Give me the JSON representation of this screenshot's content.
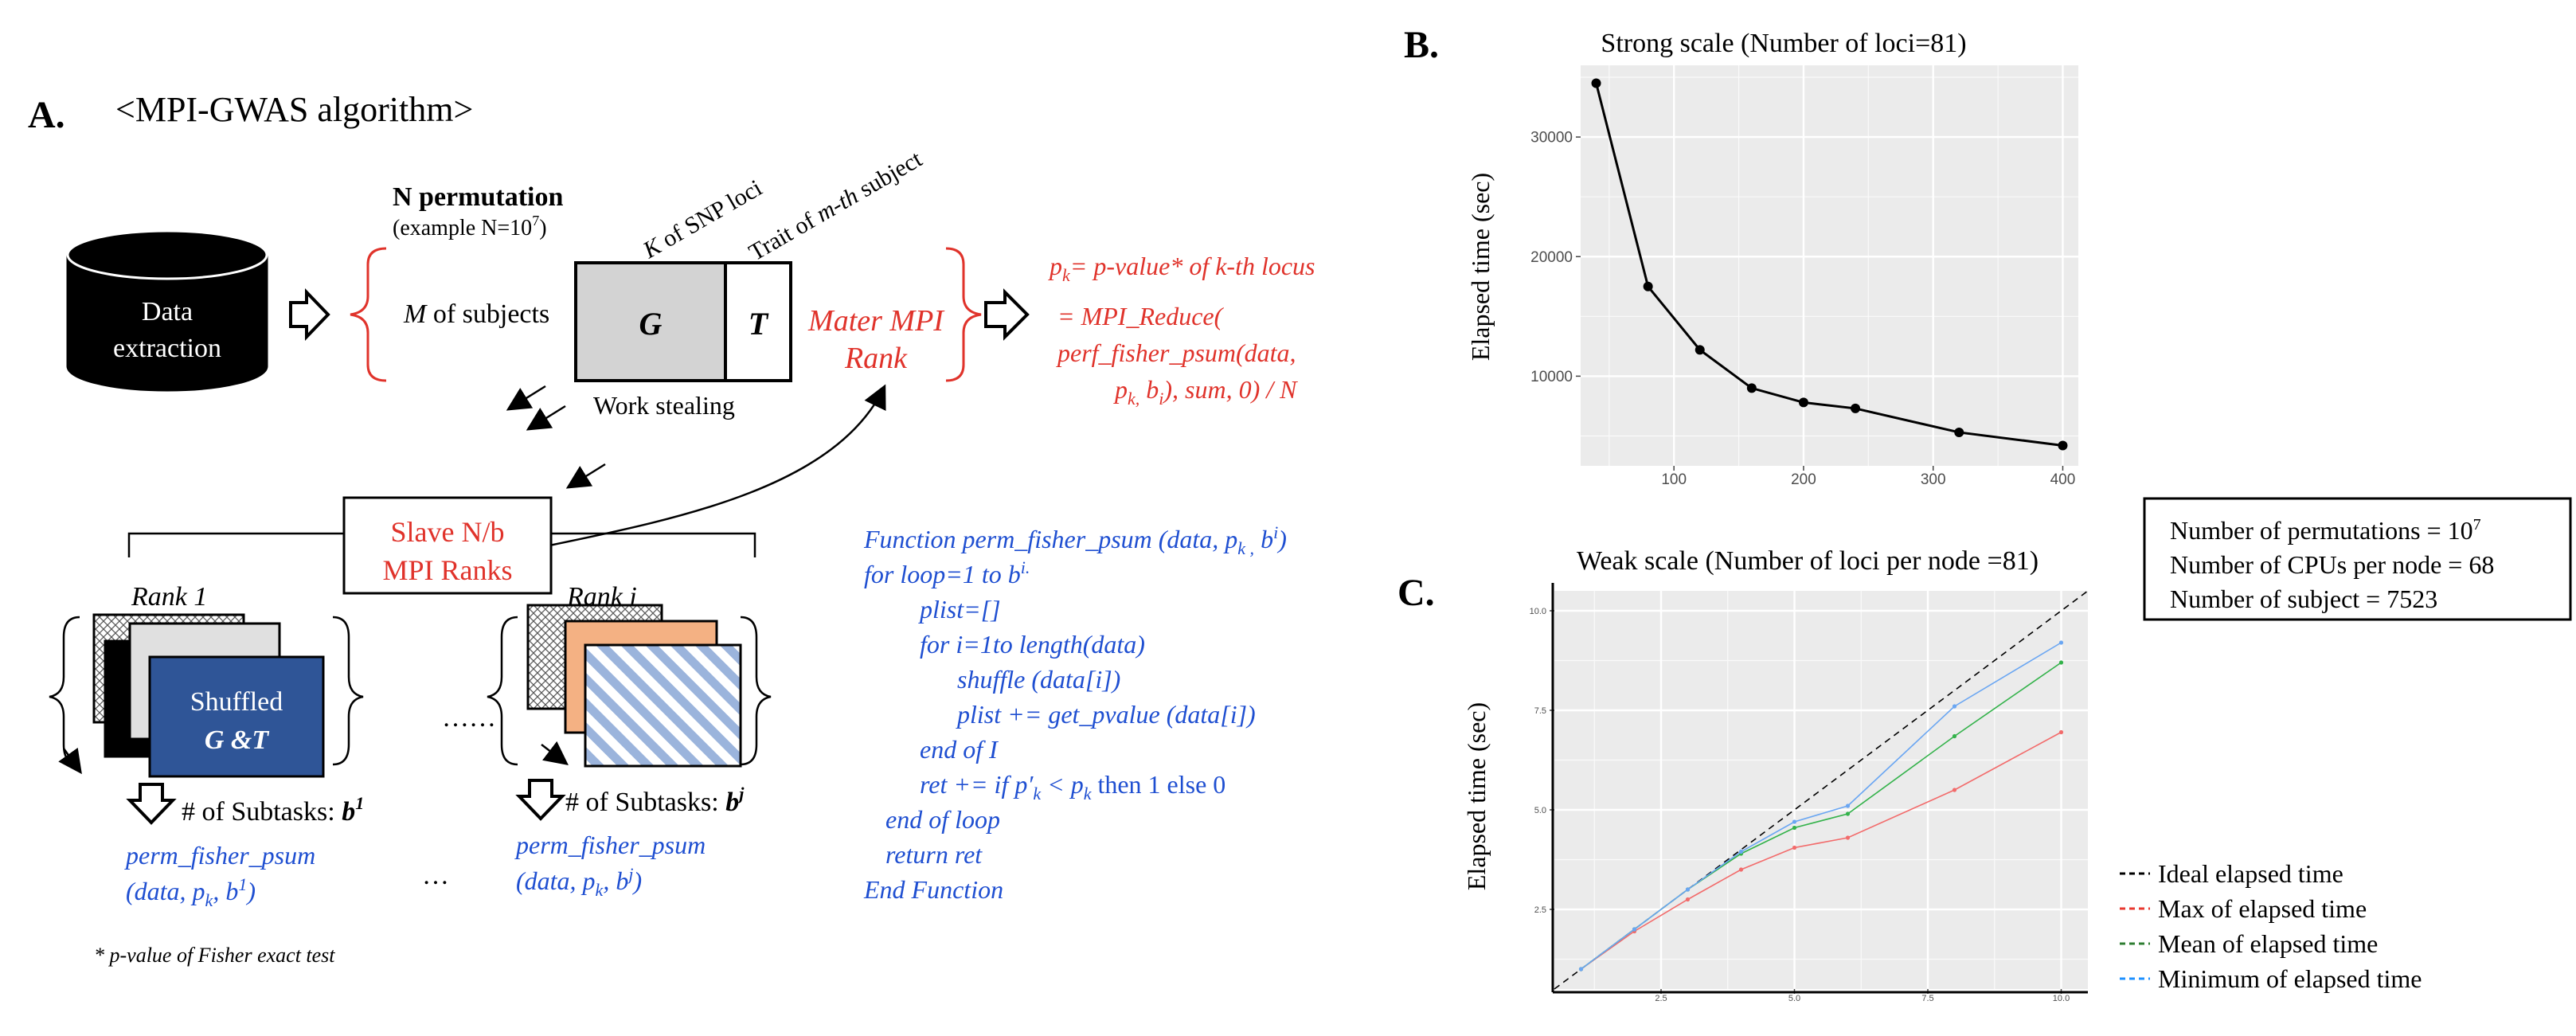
{
  "panel_a": {
    "letter": "A.",
    "title": "<MPI-GWAS algorithm>",
    "database_label_line1": "Data",
    "database_label_line2": "extraction",
    "n_permutation": "N permutation",
    "n_example": "(example N=10",
    "n_example_sup": "7",
    "n_example_end": ")",
    "k_loci": "of SNP loci",
    "k_var": "K",
    "trait_label": "Trait of",
    "trait_var": "m-th",
    "trait_end": "subject",
    "m_subjects_var": "M",
    "m_subjects": "of subjects",
    "matrix_g": "G",
    "matrix_t": "T",
    "master_line1": "Mater MPI",
    "master_line2": "Rank",
    "work_stealing": "Work stealing",
    "slave_line1": "Slave N/b",
    "slave_line2": "MPI Ranks",
    "rank1": "Rank 1",
    "ranki": "Rank i",
    "shuffled_line1": "Shuffled",
    "shuffled_line2": "G &T",
    "dots_middle": "……",
    "dots_bottom": "…",
    "subtasks_1": "# of Subtasks:",
    "subtasks_1_var": "b",
    "subtasks_1_sup": "1",
    "subtasks_j": "# of Subtasks:",
    "subtasks_j_var": "b",
    "subtasks_j_sup": "j",
    "call1_line1": "perm_fisher_psum",
    "call1_line2": "(data, p",
    "call1_sub": "k",
    "call1_mid": ", b",
    "call1_sup": "1",
    "call1_end": ")",
    "callj_line1": "perm_fisher_psum",
    "callj_line2": "(data, p",
    "callj_sub": "k",
    "callj_mid": ", b",
    "callj_sup": "j",
    "callj_end": ")",
    "footnote": "* p-value of Fisher exact test",
    "pk_def_p": "p",
    "pk_def_sub": "k",
    "pk_def_rest": "= p-value* of k-th locus",
    "reduce_line1": "= MPI_Reduce(",
    "reduce_line2": "perf_fisher_psum(data,",
    "reduce_line3_p": "p",
    "reduce_line3_sub": "k,",
    "reduce_line3_b": " b",
    "reduce_line3_bsub": "i",
    "reduce_line3_end": "), sum, 0) / N",
    "code_lines": [
      "Function perm_fisher_psum (data, p",
      "for loop=1 to b",
      "plist=[]",
      "for i=1to length(data)",
      "shuffle (data[i])",
      "plist += get_pvalue (data[i])",
      "end of I",
      "ret += if p′",
      "end of loop",
      "return ret",
      "End Function"
    ],
    "code_line1_sub": "k ,",
    "code_line1_b": " b",
    "code_line1_sup": "i",
    "code_line1_end": ")",
    "code_line2_sup": "i.",
    "code_line8_sub1": "k",
    "code_line8_mid": " < p",
    "code_line8_sub2": "k",
    "code_line8_end": " then 1 else 0"
  },
  "panel_b": {
    "letter": "B.",
    "title": "Strong scale (Number of loci=81)",
    "ylabel": "Elapsed time (sec)"
  },
  "panel_c": {
    "letter": "C.",
    "title": "Weak scale (Number of loci per node =81)",
    "ylabel": "Elapsed time (sec)"
  },
  "info_box": {
    "line1": "Number of permutations = 10",
    "line1_sup": "7",
    "line2": "Number of CPUs per node = 68",
    "line3": "Number of subject = 7523"
  },
  "legend_c": [
    {
      "label": "Ideal elapsed time",
      "color": "#000000"
    },
    {
      "label": "Max of elapsed time",
      "color": "#e8382f"
    },
    {
      "label": "Mean of elapsed time",
      "color": "#2e7d32"
    },
    {
      "label": "Minimum of elapsed time",
      "color": "#1e90ff"
    }
  ],
  "chart_data": [
    {
      "type": "line",
      "title": "Strong scale (Number of loci=81)",
      "xlabel": "",
      "ylabel": "Elapsed time (sec)",
      "xlim": [
        28,
        412
      ],
      "ylim": [
        2500,
        36000
      ],
      "xticks": [
        100,
        200,
        300,
        400
      ],
      "yticks": [
        10000,
        20000,
        30000
      ],
      "grid": true,
      "series": [
        {
          "x": [
            40,
            80,
            120,
            160,
            200,
            240,
            320,
            400
          ],
          "y": [
            34500,
            17500,
            12200,
            9000,
            7800,
            7300,
            5300,
            4200
          ]
        }
      ]
    },
    {
      "type": "line",
      "title": "Weak scale (Number of loci per node =81)",
      "xlabel": "",
      "ylabel": "Elapsed time (sec)",
      "xlim": [
        0.5,
        10.5
      ],
      "ylim": [
        0.5,
        10.5
      ],
      "xticks": [
        2.5,
        5.0,
        7.5,
        10.0
      ],
      "yticks": [
        2.5,
        5.0,
        7.5,
        10.0
      ],
      "grid": true,
      "legend": "right",
      "series": [
        {
          "name": "Ideal elapsed time",
          "dashed": true,
          "color": "#000000",
          "x": [
            0.5,
            10.5
          ],
          "y": [
            0.5,
            10.5
          ]
        },
        {
          "name": "Max of elapsed time",
          "color": "#f26b6b",
          "x": [
            1,
            2,
            3,
            4,
            5,
            6,
            8,
            10
          ],
          "y": [
            1,
            1.95,
            2.75,
            3.5,
            4.05,
            4.3,
            5.5,
            6.95
          ]
        },
        {
          "name": "Mean of elapsed time",
          "color": "#33b24a",
          "x": [
            1,
            2,
            3,
            4,
            5,
            6,
            8,
            10
          ],
          "y": [
            1,
            2,
            3,
            3.9,
            4.55,
            4.9,
            6.85,
            8.7
          ]
        },
        {
          "name": "Minimum of elapsed time",
          "color": "#6aa6f2",
          "x": [
            1,
            2,
            3,
            4,
            5,
            6,
            8,
            10
          ],
          "y": [
            1,
            2,
            3,
            3.95,
            4.7,
            5.1,
            7.6,
            9.2
          ]
        }
      ]
    }
  ]
}
